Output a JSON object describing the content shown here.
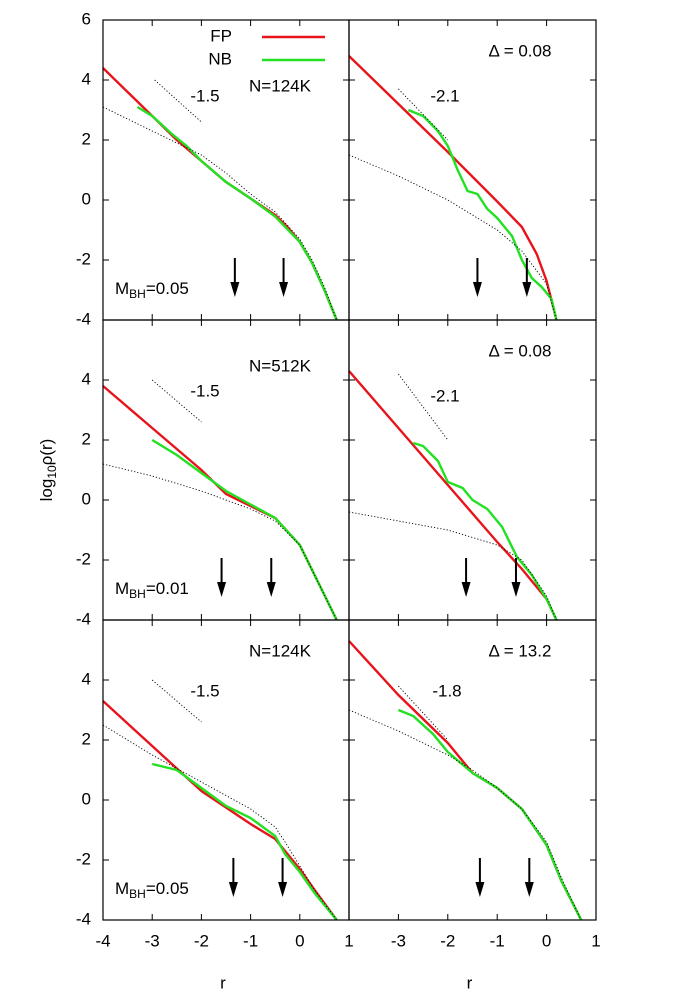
{
  "chart_data": [
    {
      "type": "line",
      "xlim": [
        -4,
        1
      ],
      "ylim": [
        -4,
        6
      ],
      "yticks": [
        -4,
        -2,
        0,
        2,
        4,
        6
      ],
      "legend": "upper center",
      "series": [
        {
          "name": "FP",
          "color": "#e8141c",
          "x": [
            -4,
            -3.5,
            -3,
            -2.5,
            -2,
            -1.5,
            -1,
            -0.5,
            -0.25,
            0,
            0.25,
            0.5,
            0.75
          ],
          "values": [
            4.4,
            3.6,
            2.8,
            2.0,
            1.3,
            0.6,
            0.05,
            -0.5,
            -0.9,
            -1.4,
            -2.1,
            -3.0,
            -4.0
          ]
        },
        {
          "name": "NB",
          "color": "#22e022",
          "x": [
            -3.3,
            -3,
            -2.6,
            -2.3,
            -2,
            -1.5,
            -1,
            -0.5,
            0,
            0.25,
            0.5,
            0.75
          ],
          "values": [
            3.1,
            2.8,
            2.2,
            1.8,
            1.3,
            0.6,
            0.05,
            -0.55,
            -1.4,
            -2.1,
            -3.0,
            -4.0
          ]
        },
        {
          "color": "#000000",
          "dashed": true,
          "x": [
            -4,
            -3,
            -2,
            -1.5,
            -1,
            -0.5,
            0,
            0.25,
            0.5,
            0.75
          ],
          "values": [
            3.1,
            2.3,
            1.5,
            0.9,
            0.2,
            -0.4,
            -1.3,
            -2.0,
            -2.9,
            -4.0
          ]
        }
      ],
      "slope": {
        "x": [
          -2.95,
          -2
        ],
        "values": [
          4.0,
          2.6
        ],
        "label": "-1.5"
      },
      "arrows": [
        -1.32,
        -0.33
      ],
      "annotations": [
        "N=124K",
        {
          "main": "M",
          "sub": "BH",
          "rest": "=0.05"
        }
      ]
    },
    {
      "type": "line",
      "xlim": [
        -4,
        1
      ],
      "ylim": [
        -4,
        6
      ],
      "series": [
        {
          "color": "#e8141c",
          "x": [
            -4,
            -3,
            -2,
            -1,
            -0.5,
            -0.2,
            0,
            0.2
          ],
          "values": [
            4.8,
            3.2,
            1.6,
            -0.05,
            -0.9,
            -1.8,
            -2.7,
            -4.0
          ]
        },
        {
          "color": "#22e022",
          "x": [
            -2.8,
            -2.5,
            -2.2,
            -2,
            -1.8,
            -1.6,
            -1.4,
            -1.2,
            -1.0,
            -0.7,
            -0.5,
            -0.3,
            -0.1,
            0.1,
            0.2
          ],
          "values": [
            3.0,
            2.8,
            2.3,
            1.8,
            1.0,
            0.3,
            0.2,
            -0.3,
            -0.6,
            -1.2,
            -2.0,
            -2.6,
            -2.9,
            -3.3,
            -4.0
          ]
        },
        {
          "color": "#000000",
          "dashed": true,
          "x": [
            -4,
            -3,
            -2,
            -1.5,
            -1,
            -0.5,
            0,
            0.2
          ],
          "values": [
            1.5,
            0.8,
            0,
            -0.5,
            -1.0,
            -1.7,
            -2.8,
            -4.0
          ]
        }
      ],
      "slope": {
        "x": [
          -3,
          -2
        ],
        "values": [
          3.7,
          2.0
        ],
        "label": "-2.1"
      },
      "arrows": [
        -1.4,
        -0.4
      ],
      "annotations": [
        "Δ = 0.08"
      ]
    },
    {
      "type": "line",
      "xlim": [
        -4,
        1
      ],
      "ylim": [
        -4,
        6
      ],
      "yticks": [
        -4,
        -2,
        0,
        2,
        4
      ],
      "ylabel": {
        "main": "log",
        "sub": "10",
        "rest": "ρ(r)"
      },
      "series": [
        {
          "color": "#e8141c",
          "x": [
            -4,
            -3,
            -2,
            -1.5,
            -1,
            -0.5,
            0,
            0.3,
            0.75
          ],
          "values": [
            3.8,
            2.4,
            1.0,
            0.2,
            -0.2,
            -0.6,
            -1.5,
            -2.5,
            -4.0
          ]
        },
        {
          "color": "#22e022",
          "x": [
            -3,
            -2.5,
            -2,
            -1.5,
            -1,
            -0.5,
            0,
            0.3,
            0.75
          ],
          "values": [
            2.0,
            1.5,
            0.9,
            0.3,
            -0.15,
            -0.6,
            -1.5,
            -2.5,
            -4.0
          ]
        },
        {
          "color": "#000000",
          "dashed": true,
          "x": [
            -4,
            -3,
            -2,
            -1,
            -0.5,
            0,
            0.3,
            0.75
          ],
          "values": [
            1.2,
            0.8,
            0.3,
            -0.3,
            -0.7,
            -1.5,
            -2.5,
            -4.0
          ]
        }
      ],
      "slope": {
        "x": [
          -3,
          -2
        ],
        "values": [
          4.0,
          2.6
        ],
        "label": "-1.5"
      },
      "arrows": [
        -1.59,
        -0.58
      ],
      "annotations": [
        "N=512K",
        {
          "main": "M",
          "sub": "BH",
          "rest": "=0.01"
        }
      ]
    },
    {
      "type": "line",
      "xlim": [
        -4,
        1
      ],
      "ylim": [
        -4,
        6
      ],
      "series": [
        {
          "color": "#e8141c",
          "x": [
            -4,
            -3,
            -2,
            -1,
            -0.5,
            0,
            0.2
          ],
          "values": [
            4.3,
            2.4,
            0.5,
            -1.4,
            -2.3,
            -3.3,
            -4.0
          ]
        },
        {
          "color": "#22e022",
          "x": [
            -2.7,
            -2.5,
            -2.2,
            -2.0,
            -1.7,
            -1.5,
            -1.2,
            -0.9,
            -0.6,
            -0.3,
            0,
            0.2
          ],
          "values": [
            1.9,
            1.8,
            1.3,
            0.6,
            0.4,
            0.0,
            -0.3,
            -0.9,
            -1.9,
            -2.5,
            -3.3,
            -4.0
          ]
        },
        {
          "color": "#000000",
          "dashed": true,
          "x": [
            -4,
            -3,
            -2,
            -1,
            -0.5,
            0,
            0.2
          ],
          "values": [
            -0.4,
            -0.7,
            -1.0,
            -1.5,
            -2.0,
            -3.2,
            -4.0
          ]
        }
      ],
      "slope": {
        "x": [
          -3,
          -2
        ],
        "values": [
          4.2,
          2.0
        ],
        "label": "-2.1"
      },
      "arrows": [
        -1.63,
        -0.62
      ],
      "annotations": [
        "Δ = 0.08"
      ]
    },
    {
      "type": "line",
      "xlim": [
        -4,
        1
      ],
      "ylim": [
        -4,
        6
      ],
      "yticks": [
        -4,
        -2,
        0,
        2,
        4
      ],
      "xticks": [
        -4,
        -3,
        -2,
        -1,
        0,
        1
      ],
      "xlabel": "r",
      "series": [
        {
          "color": "#e8141c",
          "x": [
            -4,
            -3,
            -2,
            -1,
            -0.5,
            -0.3,
            0,
            0.3,
            0.75
          ],
          "values": [
            3.3,
            1.8,
            0.3,
            -0.8,
            -1.3,
            -1.7,
            -2.3,
            -3.0,
            -4.0
          ]
        },
        {
          "color": "#22e022",
          "x": [
            -3,
            -2.5,
            -2,
            -1.5,
            -1,
            -0.5,
            -0.3,
            0,
            0.3,
            0.75
          ],
          "values": [
            1.2,
            1.0,
            0.4,
            -0.2,
            -0.6,
            -1.2,
            -1.8,
            -2.4,
            -3.1,
            -4.0
          ]
        },
        {
          "color": "#000000",
          "dashed": true,
          "x": [
            -4,
            -3,
            -2,
            -1,
            -0.5,
            -0.3,
            0,
            0.3,
            0.75
          ],
          "values": [
            2.5,
            1.5,
            0.6,
            -0.3,
            -0.9,
            -1.4,
            -2.2,
            -3.0,
            -4.0
          ]
        }
      ],
      "slope": {
        "x": [
          -3,
          -2
        ],
        "values": [
          4.0,
          2.6
        ],
        "label": "-1.5"
      },
      "arrows": [
        -1.35,
        -0.35
      ],
      "annotations": [
        "N=124K",
        {
          "main": "M",
          "sub": "BH",
          "rest": "=0.05"
        }
      ]
    },
    {
      "type": "line",
      "xlim": [
        -4,
        1
      ],
      "ylim": [
        -4,
        6
      ],
      "xticks": [
        -3,
        -2,
        -1,
        0,
        1
      ],
      "xlabel": "r",
      "series": [
        {
          "color": "#e8141c",
          "x": [
            -4,
            -3,
            -2,
            -1.5,
            -1,
            -0.5,
            0,
            0.3,
            0.7
          ],
          "values": [
            5.3,
            3.5,
            1.9,
            0.9,
            0.4,
            -0.3,
            -1.5,
            -2.7,
            -4.0
          ]
        },
        {
          "color": "#22e022",
          "x": [
            -3,
            -2.7,
            -2.3,
            -2,
            -1.5,
            -1,
            -0.5,
            0,
            0.3,
            0.7
          ],
          "values": [
            3.0,
            2.8,
            2.2,
            1.6,
            0.9,
            0.4,
            -0.3,
            -1.5,
            -2.7,
            -4.0
          ]
        },
        {
          "color": "#000000",
          "dashed": true,
          "x": [
            -4,
            -3,
            -2,
            -1.5,
            -1,
            -0.5,
            0,
            0.3,
            0.7
          ],
          "values": [
            3.0,
            2.3,
            1.5,
            1.0,
            0.4,
            -0.3,
            -1.4,
            -2.6,
            -4.0
          ]
        }
      ],
      "slope": {
        "x": [
          -3,
          -2
        ],
        "values": [
          3.8,
          2.0
        ],
        "label": "-1.8"
      },
      "arrows": [
        -1.35,
        -0.35
      ],
      "annotations": [
        "Δ = 13.2"
      ]
    }
  ]
}
